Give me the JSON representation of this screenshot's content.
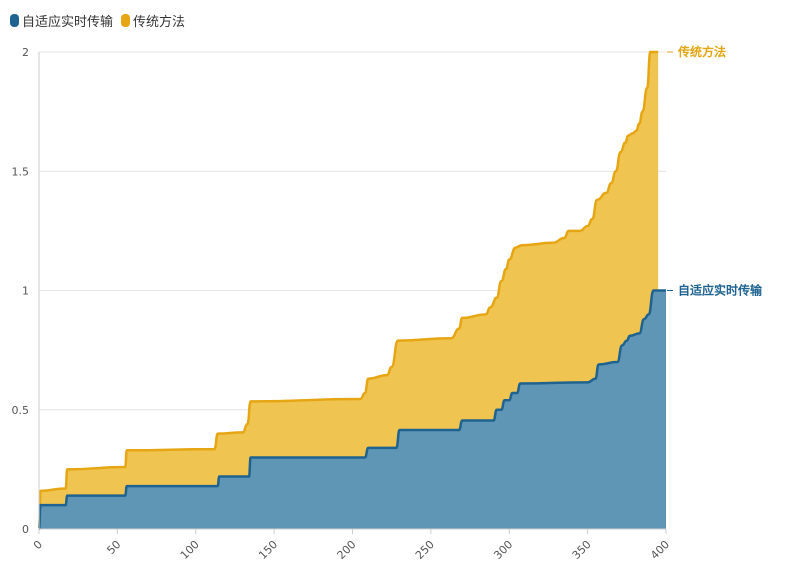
{
  "legend": {
    "items": [
      {
        "label": "自适应实时传输",
        "color": "#1f6390"
      },
      {
        "label": "传统方法",
        "color": "#e6a614"
      }
    ]
  },
  "chart_data": {
    "type": "area",
    "stacked": true,
    "xlim": [
      0,
      400
    ],
    "ylim": [
      0,
      2
    ],
    "x_ticks": [
      0,
      50,
      100,
      150,
      200,
      250,
      300,
      350,
      400
    ],
    "y_ticks": [
      0,
      0.5,
      1,
      1.5,
      2
    ],
    "y_tick_labels": [
      "0",
      "0.5",
      "1",
      "1.5",
      "2"
    ],
    "grid": true,
    "legend_position": "top-left",
    "series": [
      {
        "name": "自适应实时传输",
        "color": "#1f6390",
        "fill": "#5f96b5",
        "points": [
          [
            0,
            0
          ],
          [
            1,
            0.1
          ],
          [
            17,
            0.1
          ],
          [
            18,
            0.14
          ],
          [
            55,
            0.14
          ],
          [
            56,
            0.18
          ],
          [
            114,
            0.18
          ],
          [
            115,
            0.22
          ],
          [
            134,
            0.22
          ],
          [
            135,
            0.3
          ],
          [
            208,
            0.3
          ],
          [
            210,
            0.34
          ],
          [
            228,
            0.34
          ],
          [
            230,
            0.415
          ],
          [
            268,
            0.415
          ],
          [
            270,
            0.455
          ],
          [
            290,
            0.455
          ],
          [
            292,
            0.5
          ],
          [
            295,
            0.5
          ],
          [
            297,
            0.54
          ],
          [
            300,
            0.54
          ],
          [
            302,
            0.57
          ],
          [
            305,
            0.57
          ],
          [
            307,
            0.61
          ],
          [
            350,
            0.615
          ],
          [
            355,
            0.63
          ],
          [
            357,
            0.69
          ],
          [
            369,
            0.7
          ],
          [
            372,
            0.77
          ],
          [
            375,
            0.79
          ],
          [
            377,
            0.81
          ],
          [
            383,
            0.82
          ],
          [
            386,
            0.88
          ],
          [
            389,
            0.9
          ],
          [
            392,
            1.0
          ],
          [
            400,
            1.0
          ]
        ]
      },
      {
        "name": "传统方法",
        "color": "#e6a614",
        "fill": "#f0c450",
        "points": [
          [
            0,
            0
          ],
          [
            1,
            0.16
          ],
          [
            17,
            0.17
          ],
          [
            18,
            0.25
          ],
          [
            55,
            0.26
          ],
          [
            56,
            0.33
          ],
          [
            112,
            0.335
          ],
          [
            114,
            0.4
          ],
          [
            130,
            0.405
          ],
          [
            133,
            0.44
          ],
          [
            135,
            0.535
          ],
          [
            205,
            0.545
          ],
          [
            208,
            0.57
          ],
          [
            210,
            0.63
          ],
          [
            222,
            0.645
          ],
          [
            225,
            0.68
          ],
          [
            229,
            0.79
          ],
          [
            263,
            0.8
          ],
          [
            268,
            0.84
          ],
          [
            270,
            0.885
          ],
          [
            285,
            0.9
          ],
          [
            288,
            0.93
          ],
          [
            292,
            0.97
          ],
          [
            295,
            1.04
          ],
          [
            298,
            1.09
          ],
          [
            300,
            1.13
          ],
          [
            304,
            1.18
          ],
          [
            308,
            1.19
          ],
          [
            328,
            1.2
          ],
          [
            335,
            1.22
          ],
          [
            338,
            1.25
          ],
          [
            345,
            1.25
          ],
          [
            350,
            1.27
          ],
          [
            353,
            1.3
          ],
          [
            356,
            1.38
          ],
          [
            362,
            1.41
          ],
          [
            365,
            1.45
          ],
          [
            368,
            1.5
          ],
          [
            371,
            1.58
          ],
          [
            374,
            1.62
          ],
          [
            376,
            1.65
          ],
          [
            379,
            1.66
          ],
          [
            381,
            1.67
          ],
          [
            383,
            1.7
          ],
          [
            385,
            1.75
          ],
          [
            388,
            1.85
          ],
          [
            390,
            2.0
          ],
          [
            395,
            2.0
          ]
        ]
      }
    ],
    "end_labels": [
      {
        "series": "传统方法",
        "text": "传统方法",
        "color": "#e6a614"
      },
      {
        "series": "自适应实时传输",
        "text": "自适应实时传输",
        "color": "#1f6390"
      }
    ]
  }
}
